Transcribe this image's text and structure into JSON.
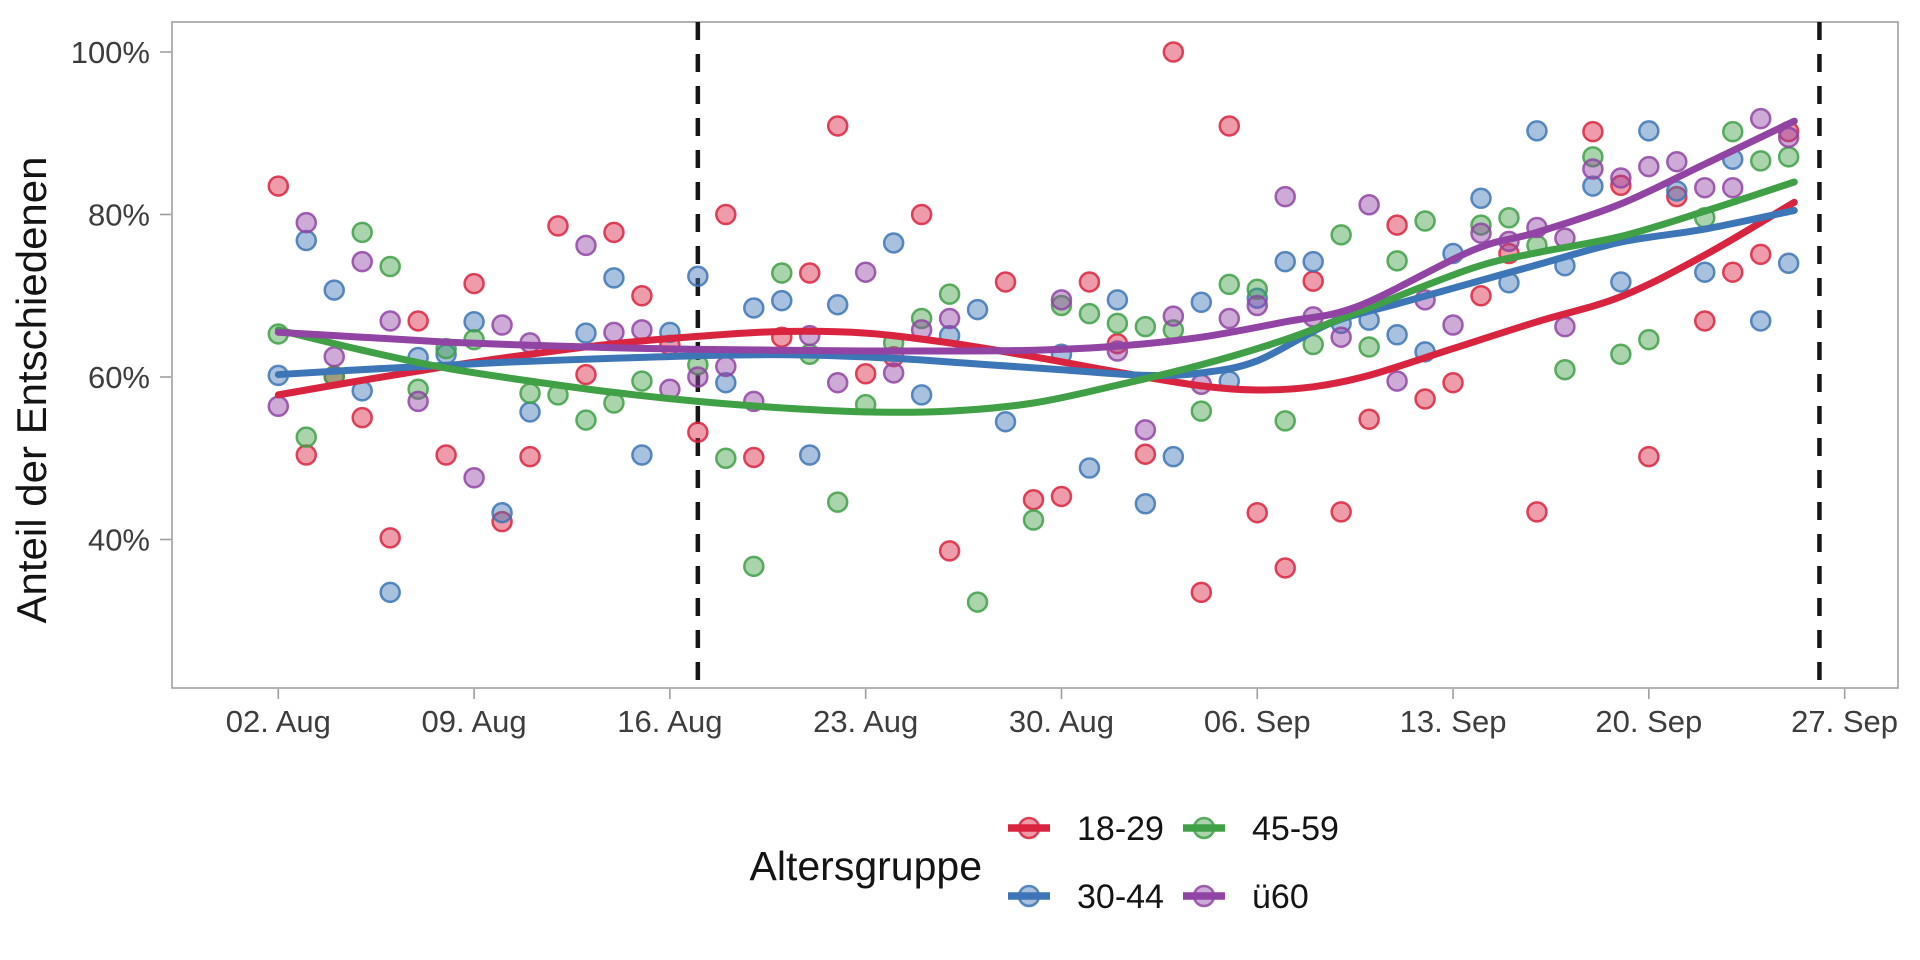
{
  "chart_data": {
    "type": "scatter",
    "title": "",
    "ylabel": "Anteil der Entschiedenen",
    "legend_title": "Altersgruppe",
    "x_unit": "days since 02. Aug",
    "x_tick_days": [
      0,
      7,
      14,
      21,
      28,
      35,
      42,
      49,
      56
    ],
    "x_tick_labels": [
      "02. Aug",
      "09. Aug",
      "16. Aug",
      "23. Aug",
      "30. Aug",
      "06. Sep",
      "13. Sep",
      "20. Sep",
      "27. Sep"
    ],
    "y_ticks": [
      {
        "value": 100,
        "label": "100%"
      },
      {
        "value": 80,
        "label": "80%"
      },
      {
        "value": 60,
        "label": "60%"
      },
      {
        "value": 40,
        "label": "40%"
      }
    ],
    "xlim_days": [
      -3.8,
      58
    ],
    "ylim": [
      21.7,
      103.7
    ],
    "grid": "off",
    "legend_position": "bottom",
    "vline_days": [
      15,
      55.1
    ],
    "vline_color": "#161616",
    "panel_border_color": "#9e9e9e",
    "series": [
      {
        "label": "18-29",
        "color": "#d92440",
        "points": [
          [
            0,
            83.5
          ],
          [
            1,
            50.4
          ],
          [
            2,
            60.1
          ],
          [
            3,
            55.0
          ],
          [
            4,
            40.2
          ],
          [
            5,
            66.9
          ],
          [
            6,
            50.4
          ],
          [
            7,
            71.5
          ],
          [
            8,
            42.2
          ],
          [
            9,
            50.2
          ],
          [
            10,
            78.6
          ],
          [
            11,
            60.3
          ],
          [
            12,
            77.8
          ],
          [
            13,
            70.0
          ],
          [
            14,
            63.9
          ],
          [
            15,
            53.2
          ],
          [
            16,
            80.0
          ],
          [
            17,
            50.1
          ],
          [
            18,
            64.9
          ],
          [
            19,
            72.8
          ],
          [
            20,
            90.9
          ],
          [
            21,
            60.4
          ],
          [
            22,
            62.5
          ],
          [
            23,
            80.0
          ],
          [
            24,
            38.6
          ],
          [
            26,
            71.7
          ],
          [
            27,
            44.9
          ],
          [
            28,
            45.3
          ],
          [
            29,
            71.7
          ],
          [
            30,
            64.1
          ],
          [
            31,
            50.5
          ],
          [
            32,
            100.0
          ],
          [
            33,
            33.5
          ],
          [
            34,
            90.9
          ],
          [
            35,
            43.3
          ],
          [
            36,
            36.5
          ],
          [
            37,
            71.8
          ],
          [
            38,
            43.4
          ],
          [
            39,
            54.8
          ],
          [
            40,
            78.7
          ],
          [
            41,
            57.3
          ],
          [
            42,
            59.3
          ],
          [
            43,
            70.0
          ],
          [
            44,
            75.2
          ],
          [
            45,
            43.4
          ],
          [
            47,
            90.2
          ],
          [
            48,
            83.6
          ],
          [
            49,
            50.2
          ],
          [
            50,
            82.2
          ],
          [
            51,
            66.9
          ],
          [
            52,
            72.9
          ],
          [
            53,
            75.1
          ],
          [
            54,
            90.2
          ]
        ],
        "trend": [
          [
            0,
            57.8
          ],
          [
            3,
            59.6
          ],
          [
            6,
            61.3
          ],
          [
            9,
            62.8
          ],
          [
            12,
            64.1
          ],
          [
            15,
            65.0
          ],
          [
            18,
            65.6
          ],
          [
            21,
            65.4
          ],
          [
            24,
            64.2
          ],
          [
            27,
            62.5
          ],
          [
            30,
            60.6
          ],
          [
            33,
            58.9
          ],
          [
            35,
            58.4
          ],
          [
            37,
            58.8
          ],
          [
            39,
            60.2
          ],
          [
            42,
            63.5
          ],
          [
            45,
            66.8
          ],
          [
            48,
            69.9
          ],
          [
            51,
            75.0
          ],
          [
            54.2,
            81.5
          ]
        ]
      },
      {
        "label": "30-44",
        "color": "#3d76b6",
        "points": [
          [
            0,
            60.2
          ],
          [
            1,
            76.8
          ],
          [
            2,
            70.7
          ],
          [
            3,
            58.3
          ],
          [
            4,
            33.5
          ],
          [
            5,
            62.4
          ],
          [
            6,
            62.8
          ],
          [
            7,
            66.8
          ],
          [
            8,
            43.3
          ],
          [
            9,
            55.7
          ],
          [
            11,
            65.4
          ],
          [
            12,
            72.2
          ],
          [
            13,
            50.4
          ],
          [
            14,
            65.5
          ],
          [
            15,
            72.4
          ],
          [
            16,
            59.3
          ],
          [
            17,
            68.5
          ],
          [
            18,
            69.4
          ],
          [
            19,
            50.4
          ],
          [
            20,
            68.9
          ],
          [
            22,
            76.5
          ],
          [
            23,
            57.8
          ],
          [
            24,
            65.1
          ],
          [
            25,
            68.3
          ],
          [
            26,
            54.5
          ],
          [
            28,
            62.8
          ],
          [
            29,
            48.8
          ],
          [
            30,
            69.5
          ],
          [
            31,
            44.4
          ],
          [
            32,
            50.2
          ],
          [
            33,
            69.2
          ],
          [
            34,
            59.5
          ],
          [
            35,
            69.7
          ],
          [
            36,
            74.2
          ],
          [
            37,
            74.2
          ],
          [
            38,
            66.6
          ],
          [
            39,
            67.0
          ],
          [
            40,
            65.2
          ],
          [
            41,
            63.1
          ],
          [
            42,
            75.2
          ],
          [
            43,
            82.0
          ],
          [
            44,
            71.6
          ],
          [
            45,
            90.3
          ],
          [
            46,
            73.7
          ],
          [
            47,
            83.5
          ],
          [
            48,
            71.7
          ],
          [
            49,
            90.3
          ],
          [
            50,
            82.9
          ],
          [
            51,
            72.9
          ],
          [
            52,
            86.8
          ],
          [
            53,
            66.9
          ],
          [
            54,
            74.0
          ]
        ],
        "trend": [
          [
            0,
            60.3
          ],
          [
            4,
            61.1
          ],
          [
            8,
            61.8
          ],
          [
            12,
            62.3
          ],
          [
            16,
            62.7
          ],
          [
            19,
            62.7
          ],
          [
            22,
            62.3
          ],
          [
            25,
            61.6
          ],
          [
            28,
            60.9
          ],
          [
            31,
            60.2
          ],
          [
            33,
            60.5
          ],
          [
            35,
            62.0
          ],
          [
            37.6,
            66.6
          ],
          [
            40,
            69.0
          ],
          [
            42.7,
            71.6
          ],
          [
            45,
            73.8
          ],
          [
            48,
            76.6
          ],
          [
            51,
            78.2
          ],
          [
            54.2,
            80.5
          ]
        ]
      },
      {
        "label": "45-59",
        "color": "#40a046",
        "points": [
          [
            0,
            65.3
          ],
          [
            1,
            52.6
          ],
          [
            2,
            60.1
          ],
          [
            3,
            77.8
          ],
          [
            4,
            73.6
          ],
          [
            5,
            58.5
          ],
          [
            6,
            63.5
          ],
          [
            7,
            64.6
          ],
          [
            9,
            58.0
          ],
          [
            10,
            57.8
          ],
          [
            11,
            54.7
          ],
          [
            12,
            56.8
          ],
          [
            13,
            59.5
          ],
          [
            15,
            61.5
          ],
          [
            16,
            50.0
          ],
          [
            17,
            36.7
          ],
          [
            18,
            72.8
          ],
          [
            19,
            62.8
          ],
          [
            20,
            44.6
          ],
          [
            21,
            56.6
          ],
          [
            22,
            64.2
          ],
          [
            23,
            67.2
          ],
          [
            24,
            70.2
          ],
          [
            25,
            32.3
          ],
          [
            27,
            42.4
          ],
          [
            28,
            68.8
          ],
          [
            29,
            67.8
          ],
          [
            30,
            66.6
          ],
          [
            31,
            66.2
          ],
          [
            32,
            65.8
          ],
          [
            33,
            55.8
          ],
          [
            34,
            71.4
          ],
          [
            35,
            70.8
          ],
          [
            36,
            54.6
          ],
          [
            37,
            64.0
          ],
          [
            38,
            77.5
          ],
          [
            39,
            63.7
          ],
          [
            40,
            74.3
          ],
          [
            41,
            79.2
          ],
          [
            43,
            78.7
          ],
          [
            44,
            79.6
          ],
          [
            45,
            76.2
          ],
          [
            46,
            60.9
          ],
          [
            47,
            87.1
          ],
          [
            48,
            62.8
          ],
          [
            49,
            64.6
          ],
          [
            51,
            79.6
          ],
          [
            52,
            90.2
          ],
          [
            53,
            86.6
          ],
          [
            54,
            87.1
          ]
        ],
        "trend": [
          [
            0,
            65.8
          ],
          [
            3,
            63.3
          ],
          [
            6,
            61.1
          ],
          [
            9,
            59.5
          ],
          [
            12,
            58.1
          ],
          [
            15,
            57.0
          ],
          [
            18,
            56.2
          ],
          [
            21,
            55.7
          ],
          [
            24,
            55.8
          ],
          [
            27,
            56.8
          ],
          [
            30,
            59.0
          ],
          [
            33,
            61.5
          ],
          [
            36,
            64.6
          ],
          [
            38.6,
            68.0
          ],
          [
            42.7,
            73.4
          ],
          [
            45,
            75.3
          ],
          [
            48,
            77.3
          ],
          [
            51,
            80.4
          ],
          [
            54.2,
            84.0
          ]
        ]
      },
      {
        "label": "ü60",
        "color": "#9144a4",
        "points": [
          [
            0,
            56.4
          ],
          [
            1,
            79.0
          ],
          [
            2,
            62.5
          ],
          [
            3,
            74.2
          ],
          [
            4,
            66.9
          ],
          [
            5,
            57.0
          ],
          [
            7,
            47.6
          ],
          [
            8,
            66.4
          ],
          [
            9,
            64.2
          ],
          [
            11,
            76.2
          ],
          [
            12,
            65.5
          ],
          [
            13,
            65.8
          ],
          [
            14,
            58.5
          ],
          [
            15,
            60.0
          ],
          [
            16,
            61.3
          ],
          [
            17,
            57.0
          ],
          [
            19,
            65.1
          ],
          [
            20,
            59.3
          ],
          [
            21,
            72.9
          ],
          [
            22,
            60.5
          ],
          [
            23,
            65.8
          ],
          [
            24,
            67.2
          ],
          [
            28,
            69.5
          ],
          [
            30,
            63.2
          ],
          [
            31,
            53.5
          ],
          [
            32,
            67.5
          ],
          [
            33,
            59.1
          ],
          [
            34,
            67.2
          ],
          [
            35,
            68.8
          ],
          [
            36,
            82.2
          ],
          [
            37,
            67.4
          ],
          [
            38,
            64.9
          ],
          [
            39,
            81.2
          ],
          [
            40,
            59.5
          ],
          [
            41,
            69.5
          ],
          [
            42,
            66.4
          ],
          [
            43,
            77.7
          ],
          [
            44,
            76.7
          ],
          [
            45,
            78.4
          ],
          [
            46,
            77.1
          ],
          [
            46,
            66.2
          ],
          [
            47,
            85.6
          ],
          [
            48,
            84.5
          ],
          [
            49,
            85.9
          ],
          [
            50,
            86.5
          ],
          [
            51,
            83.3
          ],
          [
            52,
            83.3
          ],
          [
            53,
            91.8
          ],
          [
            54,
            89.5
          ]
        ],
        "trend": [
          [
            0,
            65.5
          ],
          [
            3,
            64.9
          ],
          [
            6,
            64.3
          ],
          [
            9,
            63.9
          ],
          [
            12,
            63.6
          ],
          [
            15,
            63.4
          ],
          [
            18,
            63.3
          ],
          [
            21,
            63.2
          ],
          [
            24,
            63.2
          ],
          [
            27,
            63.3
          ],
          [
            30,
            63.8
          ],
          [
            33,
            64.9
          ],
          [
            36,
            66.8
          ],
          [
            38.6,
            68.7
          ],
          [
            42.7,
            75.6
          ],
          [
            45,
            77.8
          ],
          [
            48,
            81.3
          ],
          [
            51,
            86.2
          ],
          [
            54.2,
            91.5
          ]
        ]
      }
    ]
  }
}
